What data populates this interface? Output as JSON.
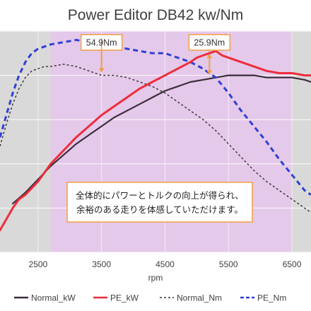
{
  "chart_data": {
    "type": "line",
    "title": "Power Editor DB42 kw/Nm",
    "xlabel": "rpm",
    "ylabel": "",
    "xlim": [
      1900,
      6800
    ],
    "ylim": [
      0,
      100
    ],
    "x_ticks": [
      2500,
      3500,
      4500,
      5500,
      6500
    ],
    "x_tick_labels": [
      "2500",
      "3500",
      "4500",
      "5500",
      "6500"
    ],
    "grid": true,
    "highlight_band": {
      "x_from": 2700,
      "x_to": 6500,
      "color": "#e5c9ea"
    },
    "outside_band_color": "#d9d9d9",
    "series": [
      {
        "name": "Normal_kW",
        "color": "#3a2e3a",
        "style": "solid",
        "x": [
          2100,
          2300,
          2500,
          2700,
          2900,
          3100,
          3300,
          3500,
          3700,
          3900,
          4100,
          4300,
          4500,
          4700,
          4900,
          5100,
          5300,
          5500,
          5700,
          5900,
          6100,
          6300,
          6500,
          6700,
          6800
        ],
        "y": [
          22,
          27,
          33,
          39,
          44,
          49,
          53,
          57,
          61,
          64,
          67,
          70,
          73,
          75,
          77,
          78,
          79,
          80,
          80,
          80,
          79,
          79,
          79,
          78,
          77
        ]
      },
      {
        "name": "PE_kW",
        "color": "#ee2d3c",
        "style": "solid",
        "x": [
          1900,
          2000,
          2100,
          2200,
          2300,
          2400,
          2500,
          2700,
          2900,
          3100,
          3300,
          3500,
          3700,
          3900,
          4100,
          4300,
          4500,
          4700,
          4900,
          5000,
          5100,
          5200,
          5300,
          5400,
          5500,
          5600,
          5700,
          5800,
          5900,
          6000,
          6100,
          6300,
          6500,
          6700,
          6800
        ],
        "y": [
          10,
          15,
          20,
          24,
          26,
          29,
          32,
          40,
          46,
          52,
          57,
          62,
          66,
          70,
          74,
          77,
          80,
          83,
          86,
          88,
          89,
          90,
          91,
          89,
          88,
          87,
          86,
          85,
          84,
          83,
          82,
          81,
          81,
          80,
          80
        ]
      },
      {
        "name": "Normal_Nm",
        "color": "#303030",
        "style": "dotted",
        "x": [
          1900,
          2000,
          2100,
          2200,
          2300,
          2400,
          2500,
          2600,
          2700,
          2900,
          3100,
          3300,
          3500,
          3700,
          3900,
          4100,
          4300,
          4500,
          4700,
          4900,
          5100,
          5300,
          5500,
          5700,
          5900,
          6100,
          6300,
          6500,
          6700,
          6800
        ],
        "y": [
          48,
          58,
          67,
          74,
          79,
          82,
          83,
          84,
          84,
          85,
          84,
          82,
          80,
          80,
          79,
          77,
          75,
          72,
          68,
          64,
          60,
          55,
          49,
          43,
          37,
          32,
          28,
          24,
          20,
          18
        ]
      },
      {
        "name": "PE_Nm",
        "color": "#2f3fd6",
        "style": "dashed",
        "x": [
          1900,
          2000,
          2100,
          2200,
          2300,
          2400,
          2500,
          2600,
          2700,
          2900,
          3100,
          3300,
          3500,
          3700,
          3900,
          4100,
          4300,
          4500,
          4700,
          4900,
          5100,
          5300,
          5500,
          5700,
          5900,
          6100,
          6300,
          6500,
          6700,
          6800
        ],
        "y": [
          52,
          62,
          72,
          80,
          86,
          90,
          92,
          93,
          94,
          95,
          96,
          95,
          94,
          93,
          92,
          91,
          90,
          90,
          88,
          86,
          83,
          79,
          72,
          64,
          57,
          50,
          42,
          35,
          28,
          26
        ]
      }
    ],
    "annotations": [
      {
        "text": "54.9Nm",
        "rpm": 3500,
        "from_value": 96,
        "to_value": 81
      },
      {
        "text": "25.9Nm",
        "rpm": 5200,
        "from_value": 90,
        "to_value": 80
      }
    ],
    "note": [
      "全体的にパワーとトルクの向上が得られ、",
      "余裕のある走りを体感していただけます。"
    ],
    "annotation_color": "#f0a040"
  }
}
